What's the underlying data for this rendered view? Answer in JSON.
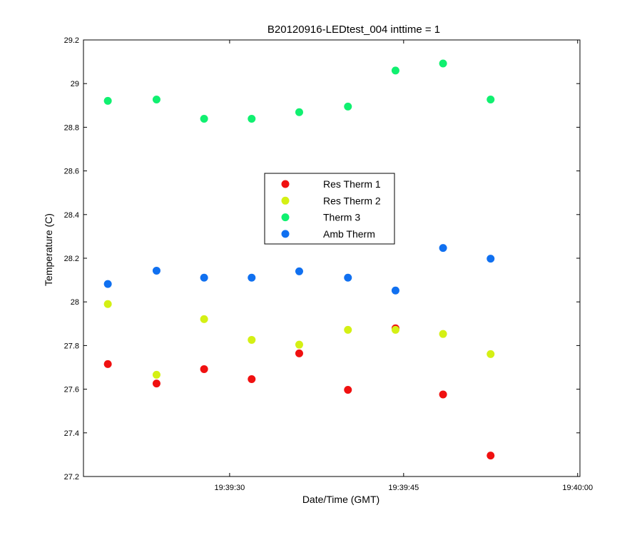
{
  "chart_data": {
    "type": "scatter",
    "title": "B20120916-LEDtest_004 inttime = 1",
    "xlabel": "Date/Time (GMT)",
    "ylabel": "Temperature (C)",
    "xlim": [
      "19:39:17.4",
      "19:40:00.2"
    ],
    "ylim": [
      27.2,
      29.2
    ],
    "x_ticks": [
      "19:39:30",
      "19:39:45",
      "19:40:00"
    ],
    "y_ticks": [
      "27.2",
      "27.4",
      "27.6",
      "27.8",
      "28",
      "28.2",
      "28.4",
      "28.6",
      "28.8",
      "29",
      "29.2"
    ],
    "grid": false,
    "legend_position": "center",
    "x": [
      "19:39:19.5",
      "19:39:23.7",
      "19:39:27.8",
      "19:39:31.9",
      "19:39:36.0",
      "19:39:40.2",
      "19:39:44.3",
      "19:39:48.4",
      "19:39:52.5"
    ],
    "series": [
      {
        "name": "Res Therm 1",
        "color": "#f01010",
        "values": [
          27.715,
          27.626,
          27.692,
          27.646,
          27.764,
          27.597,
          27.879,
          27.576,
          27.296
        ]
      },
      {
        "name": "Res Therm 2",
        "color": "#d4f014",
        "values": [
          27.99,
          27.666,
          27.921,
          27.826,
          27.804,
          27.872,
          27.872,
          27.853,
          27.761
        ]
      },
      {
        "name": "Therm 3",
        "color": "#10f070",
        "values": [
          28.921,
          28.927,
          28.839,
          28.839,
          28.869,
          28.895,
          29.06,
          29.092,
          28.927
        ]
      },
      {
        "name": "Amb Therm",
        "color": "#1070f0",
        "values": [
          28.082,
          28.143,
          28.111,
          28.111,
          28.14,
          28.111,
          28.052,
          28.247,
          28.198
        ]
      }
    ]
  }
}
